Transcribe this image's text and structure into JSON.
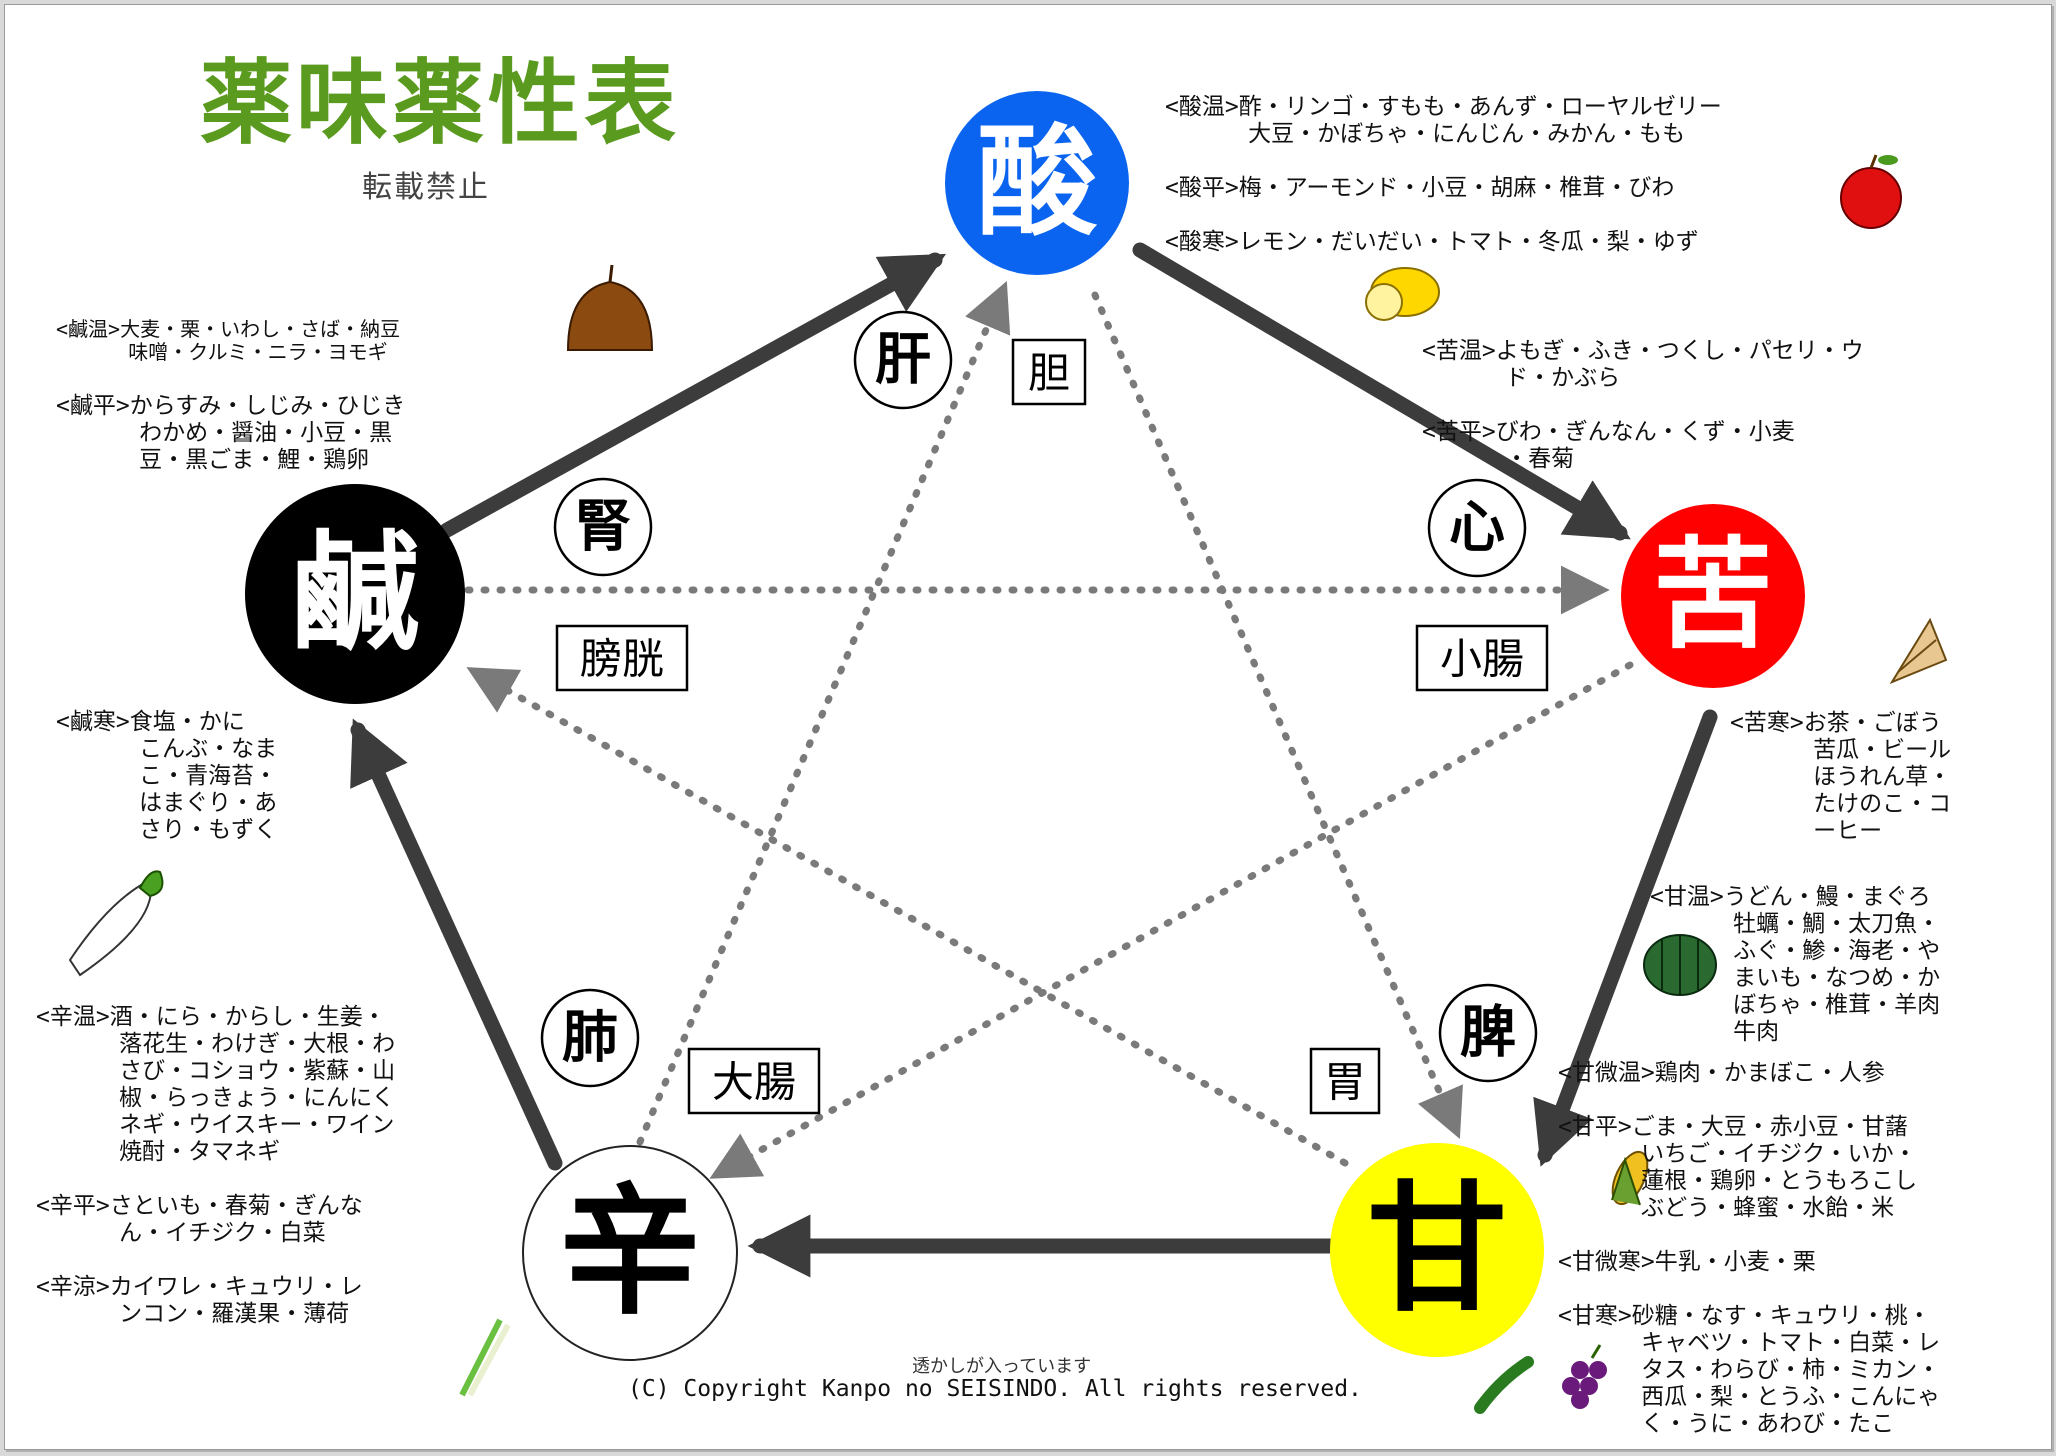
{
  "title": "薬味薬性表",
  "subtitle": "転載禁止",
  "tastes": {
    "sour": "酸",
    "bitter": "苦",
    "sweet": "甘",
    "pungent": "辛",
    "salty": "鹹"
  },
  "organs": {
    "liver": "肝",
    "gallbladder": "胆",
    "heart": "心",
    "small_intestine": "小腸",
    "spleen": "脾",
    "stomach": "胃",
    "lung": "肺",
    "large_intestine": "大腸",
    "kidney": "腎",
    "bladder": "膀胱"
  },
  "colors": {
    "sour": "#0a64f0",
    "bitter": "#ff0000",
    "sweet": "#ffff00",
    "pungent": "#ffffff",
    "salty": "#000000",
    "title": "#5a9a1e",
    "arrow": "#3c3c3c",
    "dotted": "#7a7a7a"
  },
  "foods": {
    "sour": "<酸温>酢・リンゴ・すもも・あんず・ローヤルゼリー\n      大豆・かぼちゃ・にんじん・みかん・もも\n\n<酸平>梅・アーモンド・小豆・胡麻・椎茸・びわ\n\n<酸寒>レモン・だいだい・トマト・冬瓜・梨・ゆず",
    "bitter_warm": "<苦温>よもぎ・ふき・つくし・パセリ・ウ\n      ド・かぶら\n\n<苦平>びわ・ぎんなん・くず・小麦\n      ・春菊",
    "bitter_cold": "<苦寒>お茶・ごぼう\n      苦瓜・ビール\n      ほうれん草・\n      たけのこ・コ\n      ーヒー",
    "sweet_warm": "<甘温>うどん・鰻・まぐろ\n      牡蠣・鯛・太刀魚・\n      ふぐ・鯵・海老・や\n      まいも・なつめ・か\n      ぼちゃ・椎茸・羊肉\n      牛肉",
    "sweet_rest": "<甘微温>鶏肉・かまぼこ・人参\n\n<甘平>ごま・大豆・赤小豆・甘藷\n      いちご・イチジク・いか・\n      蓮根・鶏卵・とうもろこし\n      ぶどう・蜂蜜・水飴・米\n\n<甘微寒>牛乳・小麦・栗\n\n<甘寒>砂糖・なす・キュウリ・桃・\n      キャベツ・トマト・白菜・レ\n      タス・わらび・柿・ミカン・\n      西瓜・梨・とうふ・こんにゃ\n      く・うに・あわび・たこ",
    "salty_warm": "<鹹温>大麦・栗・いわし・さば・納豆\n      味噌・クルミ・ニラ・ヨモギ",
    "salty_neutral": "<鹹平>からすみ・しじみ・ひじき\n      わかめ・醤油・小豆・黒\n      豆・黒ごま・鯉・鶏卵",
    "salty_cold": "<鹹寒>食塩・かに\n      こんぶ・なま\n      こ・青海苔・\n      はまぐり・あ\n      さり・もずく",
    "pungent": "<辛温>酒・にら・からし・生姜・\n      落花生・わけぎ・大根・わ\n      さび・コショウ・紫蘇・山\n      椒・らっきょう・にんにく\n      ネギ・ウイスキー・ワイン\n      焼酎・タマネギ\n\n<辛平>さといも・春菊・ぎんな\n      ん・イチジク・白菜\n\n<辛涼>カイワレ・キュウリ・レ\n      ンコン・羅漢果・薄荷"
  },
  "footer": {
    "watermark": "透かしが入っています",
    "copyright": "(C) Copyright Kanpo no SEISINDO. All rights reserved."
  },
  "icons": [
    "apple-icon",
    "lemon-icon",
    "chestnut-icon",
    "bamboo-shoot-icon",
    "pumpkin-icon",
    "daikon-icon",
    "corn-icon",
    "grape-icon",
    "cucumber-icon",
    "scallion-icon"
  ]
}
